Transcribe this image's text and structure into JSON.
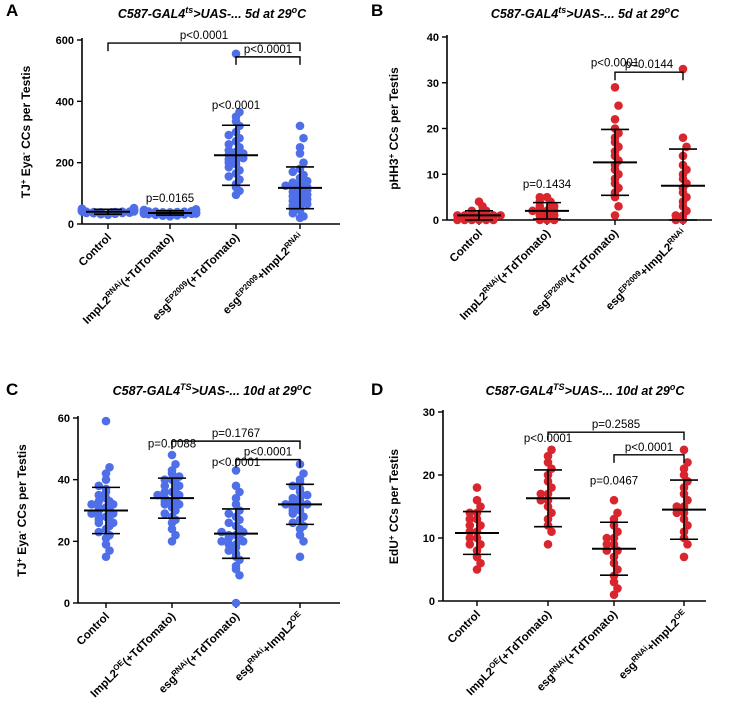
{
  "chart_data": [
    {
      "letter": "A",
      "type": "scatter",
      "title_parts": [
        "C587-GAL4",
        "ts",
        ">UAS-... 5d at 29",
        "o",
        "C"
      ],
      "ylabel_parts": [
        "TJ",
        "+",
        " Eya",
        "-",
        " CCs per Testis"
      ],
      "ylim": [
        0,
        600
      ],
      "yticks": [
        0,
        200,
        400,
        600
      ],
      "color": "#4F6FE8",
      "categories": [
        [
          {
            "t": "Control"
          }
        ],
        [
          {
            "t": "ImpL2"
          },
          {
            "t": "RNAi",
            "sup": true
          },
          {
            "t": "(+TdTomato)"
          }
        ],
        [
          {
            "t": "esg"
          },
          {
            "t": "EP2009",
            "sup": true
          },
          {
            "t": "(+TdTomato)"
          }
        ],
        [
          {
            "t": "esg"
          },
          {
            "t": "EP2009",
            "sup": true
          },
          {
            "t": "+ImpL2"
          },
          {
            "t": "RNAi",
            "sup": true
          }
        ]
      ],
      "groups": [
        {
          "mean": 40,
          "sd": 8,
          "points": [
            30,
            32,
            33,
            35,
            36,
            36,
            37,
            38,
            38,
            39,
            39,
            40,
            40,
            40,
            41,
            41,
            42,
            42,
            43,
            43,
            44,
            45,
            45,
            46,
            47,
            48,
            50,
            52
          ]
        },
        {
          "mean": 36,
          "sd": 7,
          "points": [
            25,
            27,
            28,
            30,
            31,
            32,
            33,
            33,
            34,
            35,
            35,
            36,
            36,
            37,
            37,
            38,
            38,
            39,
            40,
            40,
            41,
            42,
            43,
            44,
            46,
            48
          ]
        },
        {
          "mean": 224,
          "sd": 98,
          "points": [
            95,
            108,
            120,
            130,
            145,
            155,
            165,
            175,
            185,
            195,
            200,
            205,
            210,
            215,
            220,
            225,
            230,
            235,
            240,
            250,
            260,
            270,
            280,
            290,
            300,
            320,
            335,
            350,
            365,
            555
          ]
        },
        {
          "mean": 118,
          "sd": 68,
          "points": [
            20,
            25,
            35,
            45,
            50,
            55,
            60,
            65,
            70,
            75,
            80,
            85,
            90,
            95,
            100,
            105,
            110,
            115,
            118,
            120,
            125,
            130,
            135,
            140,
            150,
            160,
            170,
            180,
            200,
            230,
            250,
            280,
            320
          ]
        }
      ],
      "brackets": [
        {
          "from": 0,
          "to": 3,
          "level": 590,
          "label": "p<0.0001"
        },
        {
          "from": 2,
          "to": 3,
          "level": 545,
          "label": "p<0.0001"
        }
      ],
      "group_labels": [
        {
          "group": 1,
          "value": 72,
          "label": "p=0.0165"
        },
        {
          "group": 2,
          "value": 375,
          "label": "p<0.0001"
        }
      ]
    },
    {
      "letter": "B",
      "type": "scatter",
      "title_parts": [
        "C587-GAL4",
        "ts",
        ">UAS-... 5d at 29",
        "o",
        "C"
      ],
      "ylabel_parts": [
        "pHH3",
        "+",
        " CCs per Testis"
      ],
      "ylim": [
        0,
        40
      ],
      "yticks": [
        0,
        10,
        20,
        30,
        40
      ],
      "color": "#D9262E",
      "categories": [
        [
          {
            "t": "Control"
          }
        ],
        [
          {
            "t": "ImpL2"
          },
          {
            "t": "RNAi",
            "sup": true
          },
          {
            "t": "(+TdTomato)"
          }
        ],
        [
          {
            "t": "esg"
          },
          {
            "t": "EP2009",
            "sup": true
          },
          {
            "t": "(+TdTomato)"
          }
        ],
        [
          {
            "t": "esg"
          },
          {
            "t": "EP2009",
            "sup": true
          },
          {
            "t": "+ImpL2"
          },
          {
            "t": "RNAi",
            "sup": true
          }
        ]
      ],
      "groups": [
        {
          "mean": 1,
          "sd": 1,
          "points": [
            0,
            0,
            0,
            0,
            0,
            0,
            1,
            1,
            1,
            1,
            1,
            1,
            1,
            2,
            2,
            2,
            3,
            4
          ]
        },
        {
          "mean": 2,
          "sd": 1.8,
          "points": [
            0,
            0,
            0,
            1,
            1,
            1,
            2,
            2,
            2,
            2,
            3,
            3,
            3,
            4,
            4,
            5,
            5
          ]
        },
        {
          "mean": 12.6,
          "sd": 7.2,
          "points": [
            1,
            3,
            5,
            6,
            7,
            8,
            9,
            10,
            11,
            12,
            13,
            14,
            15,
            16,
            17,
            18,
            19,
            20,
            22,
            25,
            29
          ]
        },
        {
          "mean": 7.5,
          "sd": 8,
          "points": [
            0,
            0,
            1,
            1,
            2,
            3,
            4,
            5,
            6,
            7,
            8,
            9,
            10,
            11,
            12,
            14,
            16,
            18,
            33
          ]
        }
      ],
      "brackets": [
        {
          "from": 2,
          "to": 3,
          "level": 32.3,
          "label": "p=0.0144"
        }
      ],
      "group_labels": [
        {
          "group": 1,
          "value": 7,
          "label": "p=0.1434"
        },
        {
          "group": 2,
          "value": 33.5,
          "label": "p<0.0001"
        }
      ]
    },
    {
      "letter": "C",
      "type": "scatter",
      "title_parts": [
        "C587-GAL4",
        "TS",
        ">UAS-... 10d at 29",
        "o",
        "C"
      ],
      "ylabel_parts": [
        "TJ",
        "+",
        " Eya",
        "-",
        " CCs per  Testis"
      ],
      "ylim": [
        0,
        60
      ],
      "yticks": [
        0,
        20,
        40,
        60
      ],
      "color": "#4F6FE8",
      "categories": [
        [
          {
            "t": "Control"
          }
        ],
        [
          {
            "t": "ImpL2"
          },
          {
            "t": "OE",
            "sup": true
          },
          {
            "t": "(+TdTomato)"
          }
        ],
        [
          {
            "t": "esg"
          },
          {
            "t": "RNAi",
            "sup": true
          },
          {
            "t": "(+TdTomato)"
          }
        ],
        [
          {
            "t": "esg"
          },
          {
            "t": "RNAi",
            "sup": true
          },
          {
            "t": "+ImpL2"
          },
          {
            "t": "OE",
            "sup": true
          }
        ]
      ],
      "groups": [
        {
          "mean": 30,
          "sd": 7.5,
          "points": [
            15,
            17,
            19,
            21,
            22,
            23,
            24,
            25,
            26,
            26,
            27,
            27,
            28,
            28,
            29,
            29,
            30,
            30,
            31,
            31,
            32,
            32,
            33,
            33,
            34,
            35,
            36,
            37,
            38,
            40,
            42,
            44,
            59
          ]
        },
        {
          "mean": 34,
          "sd": 6.5,
          "points": [
            20,
            22,
            24,
            26,
            27,
            28,
            29,
            30,
            31,
            32,
            32,
            33,
            33,
            34,
            34,
            35,
            35,
            36,
            36,
            37,
            38,
            38,
            39,
            40,
            40,
            41,
            42,
            43,
            45,
            48
          ]
        },
        {
          "mean": 22.5,
          "sd": 8,
          "points": [
            0,
            9,
            11,
            12,
            14,
            15,
            16,
            17,
            18,
            19,
            19,
            20,
            20,
            21,
            21,
            22,
            22,
            23,
            23,
            24,
            25,
            26,
            27,
            28,
            29,
            30,
            32,
            34,
            36,
            38,
            43
          ]
        },
        {
          "mean": 32,
          "sd": 6.5,
          "points": [
            15,
            20,
            22,
            24,
            25,
            26,
            27,
            28,
            29,
            30,
            30,
            31,
            31,
            32,
            32,
            33,
            33,
            34,
            34,
            35,
            36,
            37,
            38,
            39,
            40,
            42,
            45
          ]
        }
      ],
      "brackets": [
        {
          "from": 1,
          "to": 3,
          "level": 52.5,
          "label": "p=0.1767"
        },
        {
          "from": 2,
          "to": 3,
          "level": 46.5,
          "label": "p<0.0001"
        }
      ],
      "group_labels": [
        {
          "group": 1,
          "value": 50.5,
          "label": "p=0.0088"
        },
        {
          "group": 2,
          "value": 44.5,
          "label": "p<0.0001"
        }
      ]
    },
    {
      "letter": "D",
      "type": "scatter",
      "title_parts": [
        "C587-GAL4",
        "TS",
        ">UAS-... 10d at 29",
        "o",
        "C"
      ],
      "ylabel_parts": [
        "EdU",
        "+",
        " CCs per Testis"
      ],
      "ylim": [
        0,
        30
      ],
      "yticks": [
        0,
        10,
        20,
        30
      ],
      "color": "#D9262E",
      "categories": [
        [
          {
            "t": "Control"
          }
        ],
        [
          {
            "t": "ImpL2"
          },
          {
            "t": "OE",
            "sup": true
          },
          {
            "t": "(+TdTomato)"
          }
        ],
        [
          {
            "t": "esg"
          },
          {
            "t": "RNAi",
            "sup": true
          },
          {
            "t": "(+TdTomato)"
          }
        ],
        [
          {
            "t": "esg"
          },
          {
            "t": "RNAi",
            "sup": true
          },
          {
            "t": "+ImpL2"
          },
          {
            "t": "OE",
            "sup": true
          }
        ]
      ],
      "groups": [
        {
          "mean": 10.8,
          "sd": 3.4,
          "points": [
            5,
            6,
            7,
            8,
            9,
            9,
            10,
            10,
            11,
            11,
            12,
            12,
            13,
            13,
            14,
            14,
            15,
            16,
            18
          ]
        },
        {
          "mean": 16.3,
          "sd": 4.5,
          "points": [
            9,
            11,
            12,
            13,
            14,
            15,
            16,
            16,
            17,
            17,
            18,
            19,
            20,
            21,
            22,
            23,
            24
          ]
        },
        {
          "mean": 8.3,
          "sd": 4.2,
          "points": [
            1,
            2,
            3,
            4,
            5,
            6,
            7,
            8,
            8,
            9,
            9,
            10,
            10,
            11,
            12,
            13,
            14,
            16
          ]
        },
        {
          "mean": 14.5,
          "sd": 4.7,
          "points": [
            7,
            9,
            10,
            11,
            12,
            13,
            14,
            14,
            15,
            15,
            16,
            17,
            18,
            19,
            20,
            21,
            22,
            24
          ]
        }
      ],
      "brackets": [
        {
          "from": 1,
          "to": 3,
          "level": 26.8,
          "label": "p=0.2585"
        },
        {
          "from": 2,
          "to": 3,
          "level": 23.2,
          "label": "p<0.0001"
        }
      ],
      "group_labels": [
        {
          "group": 1,
          "value": 25.2,
          "label": "p<0.0001"
        },
        {
          "group": 2,
          "value": 18.5,
          "label": "p=0.0467"
        }
      ]
    }
  ]
}
